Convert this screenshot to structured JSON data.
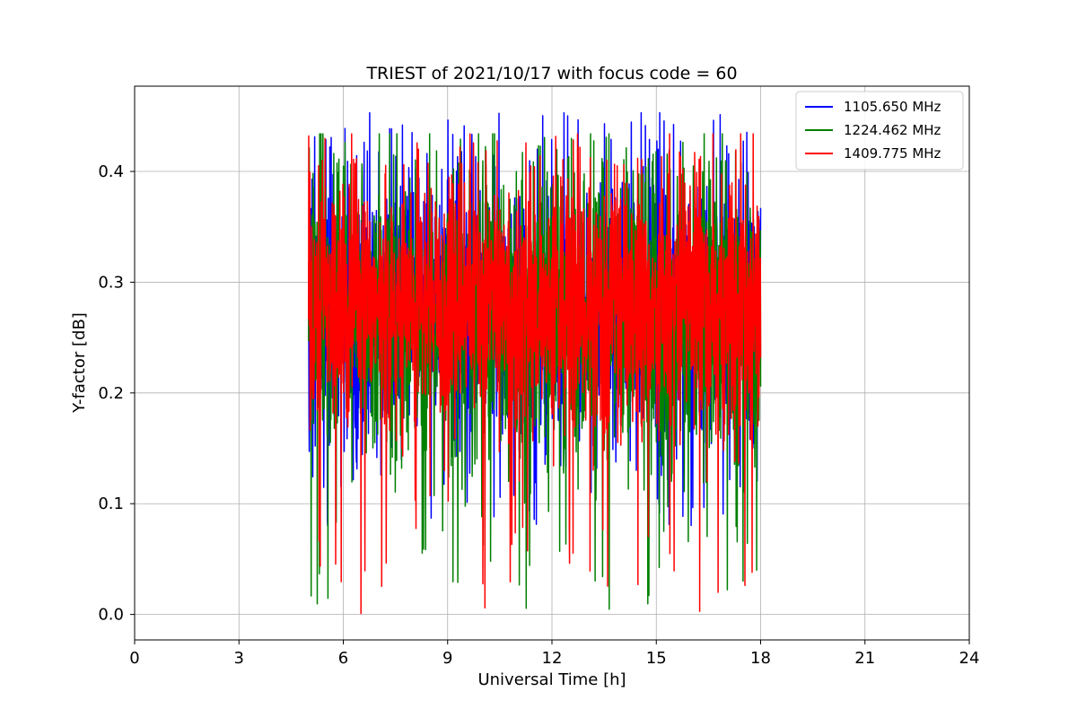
{
  "chart_data": {
    "type": "line",
    "title": "TRIEST of 2021/10/17 with focus code = 60",
    "xlabel": "Universal Time [h]",
    "ylabel": "Y-factor [dB]",
    "xlim": [
      0,
      24
    ],
    "ylim": [
      -0.023,
      0.477
    ],
    "xticks": [
      0,
      3,
      6,
      9,
      12,
      15,
      18,
      21,
      24
    ],
    "yticks": [
      0.0,
      0.1,
      0.2,
      0.3,
      0.4
    ],
    "ytick_labels": [
      "0.0",
      "0.1",
      "0.2",
      "0.3",
      "0.4"
    ],
    "grid": true,
    "legend_position": "top-right",
    "series": [
      {
        "name": "1105.650 MHz",
        "color": "#0000ff",
        "x_range": [
          5.0,
          18.0
        ],
        "y_center": 0.275,
        "y_spread": 0.06,
        "y_max": 0.453,
        "y_min": 0.08
      },
      {
        "name": "1224.462 MHz",
        "color": "#008000",
        "x_range": [
          5.0,
          18.0
        ],
        "y_center": 0.27,
        "y_spread": 0.065,
        "y_max": 0.434,
        "y_min": 0.0
      },
      {
        "name": "1409.775 MHz",
        "color": "#ff0000",
        "x_range": [
          5.0,
          18.0
        ],
        "y_center": 0.28,
        "y_spread": 0.055,
        "y_max": 0.434,
        "y_min": 0.0
      }
    ]
  }
}
